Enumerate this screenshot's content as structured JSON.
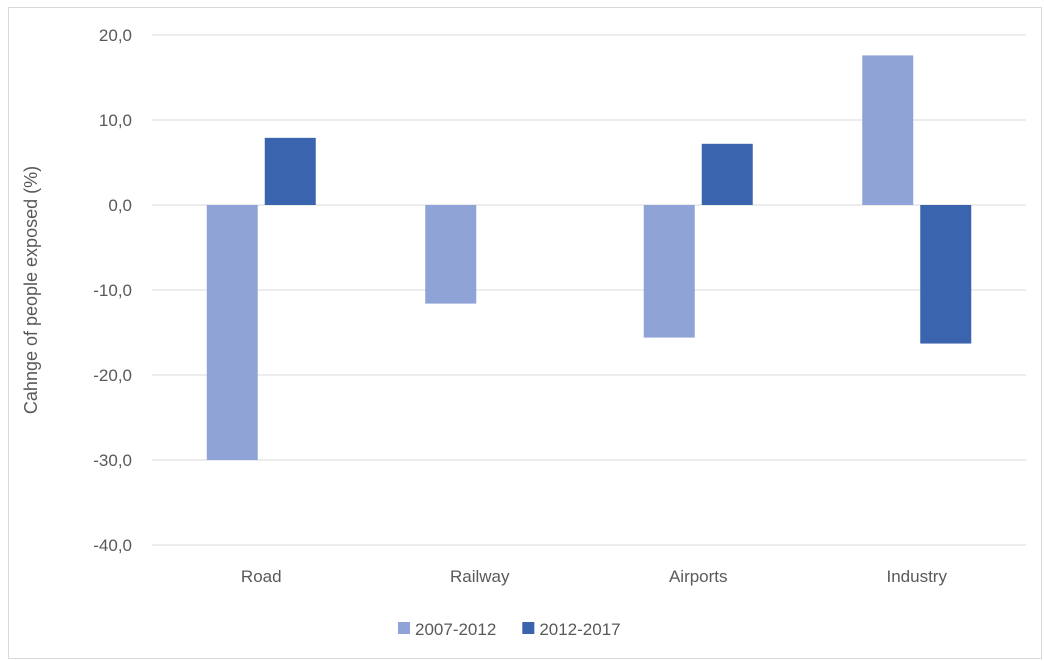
{
  "chart_data": {
    "type": "bar",
    "title": "",
    "xlabel": "",
    "ylabel": "Cahnge of people exposed (%)",
    "categories": [
      "Road",
      "Railway",
      "Airports",
      "Industry"
    ],
    "series": [
      {
        "name": "2007-2012",
        "color": "#8fa3d6",
        "values": [
          -30.0,
          -11.6,
          -15.6,
          17.6
        ]
      },
      {
        "name": "2012-2017",
        "color": "#3a64ad",
        "values": [
          7.9,
          null,
          7.2,
          -16.3
        ]
      }
    ],
    "ylim": [
      -40,
      20
    ],
    "yticks": [
      20,
      10,
      0,
      -10,
      -20,
      -30,
      -40
    ],
    "ytick_labels": [
      "20,0",
      "10,0",
      "0,0",
      "-10,0",
      "-20,0",
      "-30,0",
      "-40,0"
    ],
    "grid": true,
    "legend_position": "bottom"
  }
}
